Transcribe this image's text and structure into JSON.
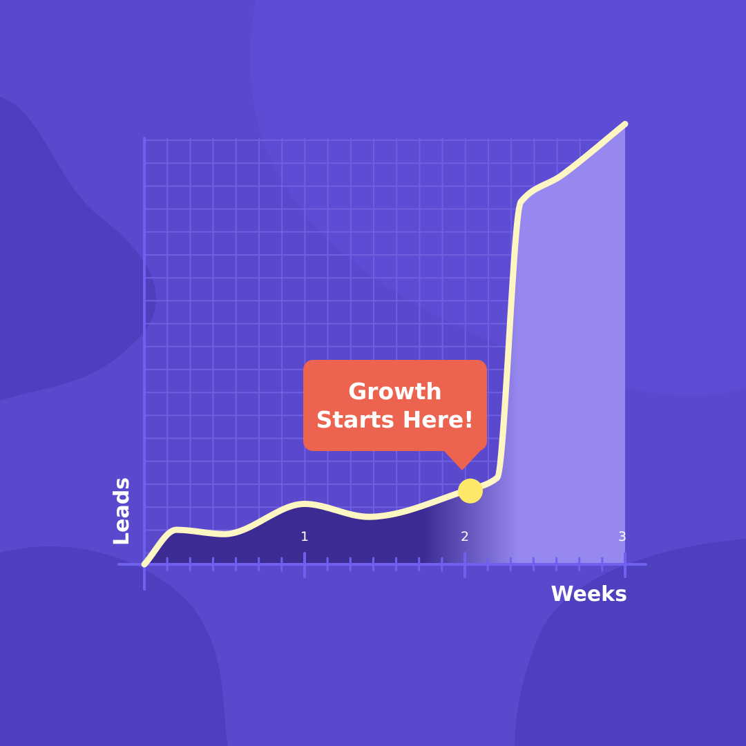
{
  "colors": {
    "background": "#5a49cc",
    "blob_dark": "#4e3fbe",
    "grid": "#6f60e0",
    "axis": "#7060ee",
    "fill_dark": "#3b2b93",
    "fill_light": "#9688ee",
    "curve": "#fdf5c2",
    "marker": "#fde86a",
    "callout": "#ec634f"
  },
  "callout": {
    "line1": "Growth",
    "line2": "Starts Here!"
  },
  "chart_data": {
    "type": "area",
    "xlabel": "Weeks",
    "ylabel": "Leads",
    "xlim": [
      0,
      3
    ],
    "ylim": [
      0,
      100
    ],
    "x_ticks": [
      {
        "value": 1,
        "label": "1"
      },
      {
        "value": 2,
        "label": "2"
      },
      {
        "value": 3,
        "label": "3"
      }
    ],
    "grid": true,
    "series": [
      {
        "x": [
          0,
          0.2,
          0.5,
          1.0,
          1.4,
          2.0,
          2.2,
          2.35,
          2.6,
          3.0
        ],
        "values": [
          0,
          8,
          7,
          14,
          11,
          17,
          20,
          84,
          90,
          102
        ]
      }
    ],
    "highlight": {
      "x": 2.0,
      "y": 17
    }
  }
}
